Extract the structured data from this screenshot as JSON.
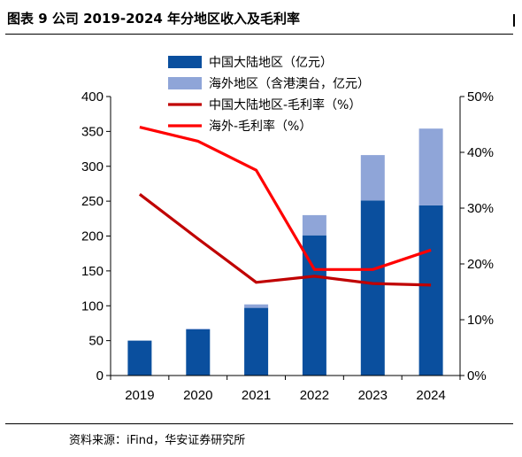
{
  "figure": {
    "title": "图表 9 公司 2019-2024 年分地区收入及毛利率",
    "source": "资料来源：iFind，华安证券研究所"
  },
  "chart_data": {
    "type": "bar",
    "categories": [
      "2019",
      "2020",
      "2021",
      "2022",
      "2023",
      "2024"
    ],
    "stacked": true,
    "series": [
      {
        "name": "中国大陆地区（亿元）",
        "kind": "bar",
        "axis": "left",
        "color": "#0a4f9e",
        "values": [
          50,
          66,
          97,
          201,
          251,
          244
        ]
      },
      {
        "name": "海外地区（含港澳台，亿元）",
        "kind": "bar",
        "axis": "left",
        "color": "#8fa5d8",
        "values": [
          0,
          1,
          5,
          29,
          65,
          110
        ]
      },
      {
        "name": "中国大陆地区-毛利率（%）",
        "kind": "line",
        "axis": "right",
        "color": "#c00000",
        "values": [
          32.5,
          24.5,
          16.7,
          17.8,
          16.5,
          16.2
        ]
      },
      {
        "name": "海外-毛利率（%）",
        "kind": "line",
        "axis": "right",
        "color": "#ff0000",
        "values": [
          44.5,
          42.0,
          36.8,
          19.0,
          19.0,
          22.5
        ]
      }
    ],
    "left_axis": {
      "min": 0,
      "max": 400,
      "ticks": [
        0,
        50,
        100,
        150,
        200,
        250,
        300,
        350,
        400
      ]
    },
    "right_axis": {
      "min": 0,
      "max": 50,
      "ticks": [
        "0%",
        "10%",
        "20%",
        "30%",
        "40%",
        "50%"
      ]
    },
    "grid": false,
    "legend_position": "top-left"
  }
}
